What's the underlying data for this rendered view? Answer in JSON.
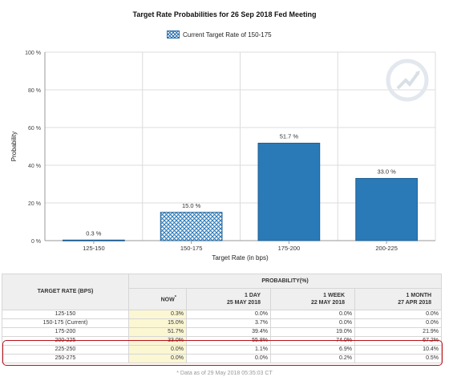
{
  "chart_data": {
    "type": "bar",
    "title": "Target Rate Probabilities for 26 Sep 2018 Fed Meeting",
    "legend": {
      "label": "Current Target Rate of 150-175",
      "position": "top-center"
    },
    "xlabel": "Target Rate (in bps)",
    "ylabel": "Probability",
    "categories": [
      "125-150",
      "150-175",
      "175-200",
      "200-225"
    ],
    "values": [
      0.3,
      15.0,
      51.7,
      33.0
    ],
    "value_labels": [
      "0.3 %",
      "15.0 %",
      "51.7 %",
      "33.0 %"
    ],
    "current_category": "150-175",
    "ylim": [
      0,
      100
    ],
    "yticks": [
      0,
      20,
      40,
      60,
      80,
      100
    ],
    "ytick_labels": [
      "0 %",
      "20 %",
      "40 %",
      "60 %",
      "80 %",
      "100 %"
    ],
    "grid": true,
    "colors": {
      "bar": "#2a7ab8",
      "bar_border": "#1f5e92",
      "grid": "#dcdcdc"
    }
  },
  "table": {
    "header_target": "TARGET RATE (BPS)",
    "header_probability": "PROBABILITY(%)",
    "columns": [
      {
        "label": "NOW",
        "note": "*",
        "date": ""
      },
      {
        "label": "1 DAY",
        "date": "25 MAY 2018"
      },
      {
        "label": "1 WEEK",
        "date": "22 MAY 2018"
      },
      {
        "label": "1 MONTH",
        "date": "27 APR 2018"
      }
    ],
    "rows": [
      {
        "target": "125-150",
        "values": [
          "0.3%",
          "0.0%",
          "0.0%",
          "0.0%"
        ]
      },
      {
        "target": "150-175 (Current)",
        "values": [
          "15.0%",
          "3.7%",
          "0.0%",
          "0.0%"
        ]
      },
      {
        "target": "175-200",
        "values": [
          "51.7%",
          "39.4%",
          "19.0%",
          "21.9%"
        ]
      },
      {
        "target": "200-225",
        "values": [
          "33.0%",
          "55.8%",
          "74.0%",
          "67.2%"
        ]
      },
      {
        "target": "225-250",
        "values": [
          "0.0%",
          "1.1%",
          "6.9%",
          "10.4%"
        ]
      },
      {
        "target": "250-275",
        "values": [
          "0.0%",
          "0.0%",
          "0.2%",
          "0.5%"
        ]
      }
    ],
    "footnote": "* Data as of 29 May 2018 05:35:03 CT",
    "colors": {
      "now_column": "#fbf7d3",
      "header": "#efefef",
      "highlight": "#b8121b"
    }
  }
}
